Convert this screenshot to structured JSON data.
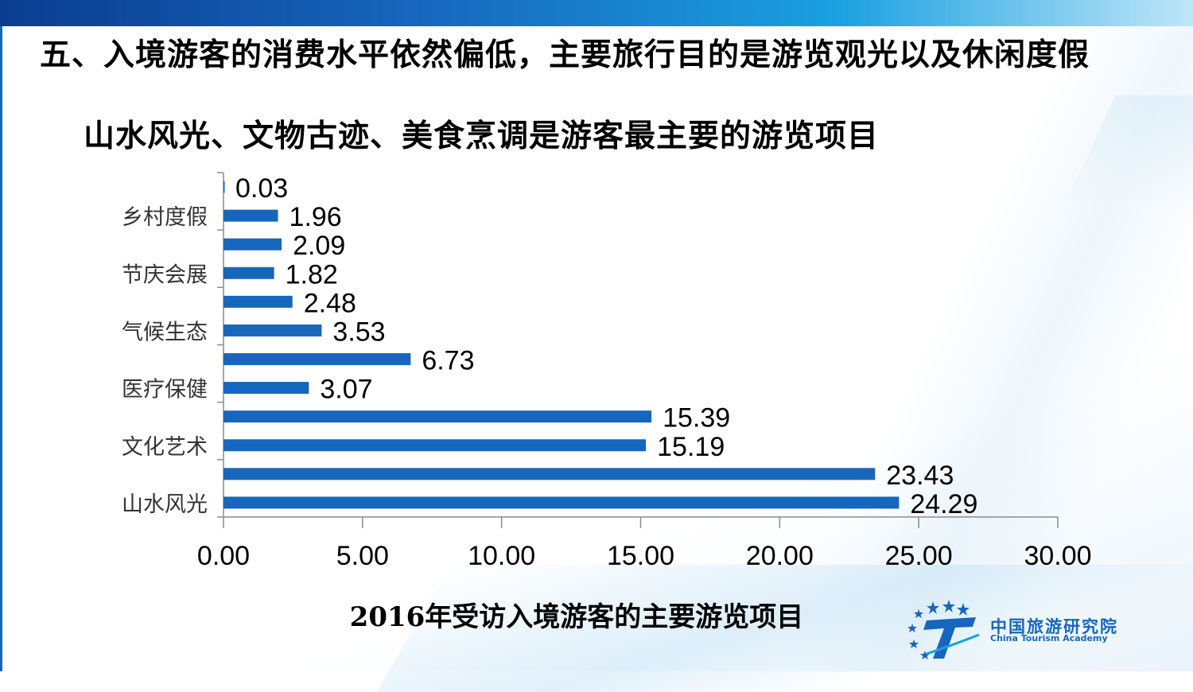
{
  "header": {
    "title": "五、入境游客的消费水平依然偏低，主要旅行目的是游览观光以及休闲度假",
    "subtitle": "山水风光、文物古迹、美食烹调是游客最主要的游览项目"
  },
  "chart_data": {
    "type": "bar",
    "orientation": "horizontal",
    "title": "2016年受访入境游客的主要游览项目",
    "categories": [
      "",
      "乡村度假",
      "",
      "节庆会展",
      "",
      "气候生态",
      "",
      "医疗保健",
      "",
      "文化艺术",
      "",
      "山水风光"
    ],
    "values": [
      0.03,
      1.96,
      2.09,
      1.82,
      2.48,
      3.53,
      6.73,
      3.07,
      15.39,
      15.19,
      23.43,
      24.29
    ],
    "value_labels": [
      "0.03",
      "1.96",
      "2.09",
      "1.82",
      "2.48",
      "3.53",
      "6.73",
      "3.07",
      "15.39",
      "15.19",
      "23.43",
      "24.29"
    ],
    "xlim": [
      0,
      30
    ],
    "xticks": [
      "0.00",
      "5.00",
      "10.00",
      "15.00",
      "20.00",
      "25.00",
      "30.00"
    ],
    "xlabel": "",
    "ylabel": "",
    "grid": false,
    "legend": "none",
    "bar_color": "#1766bd"
  },
  "logo": {
    "cn": "中国旅游研究院",
    "en": "China Tourism Academy"
  },
  "colors": {
    "accent": "#1766bd",
    "band_dark": "#0a3d8f",
    "band_light": "#1aa0e0"
  }
}
